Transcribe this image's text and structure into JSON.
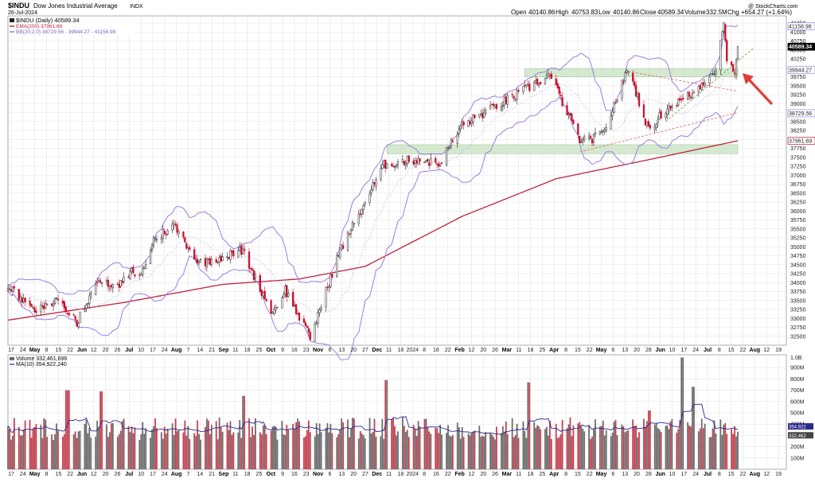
{
  "header": {
    "symbol": "$INDU",
    "name": "Dow Jones Industrial Average",
    "exchange": "INDX",
    "date": "26-Jul-2024",
    "credit": "@ StockCharts.com",
    "ohlc": {
      "open_label": "Open",
      "open": "40140.86",
      "high_label": "High",
      "high": "40753.83",
      "low_label": "Low",
      "low": "40140.86",
      "close_label": "Close",
      "close": "40589.34",
      "volume_label": "Volume",
      "volume": "332.5M",
      "chg_label": "Chg",
      "chg": "+654.27 (+1.64%)"
    }
  },
  "legend": {
    "price": "$INDU (Daily) 40589.34",
    "ema": "EMA(200) 37961.69",
    "bb": "BB(20,2.0) 38729.56 - 39944.27 - 41158.98",
    "volume": "Volume 332,461,696",
    "ma": "MA(10) 354,922,240"
  },
  "colors": {
    "up": "#222222",
    "down": "#c8102e",
    "vol_up": "#6b6b6b",
    "vol_down": "#c4404f",
    "ema": "#c0203a",
    "bb": "#9b7fe0",
    "bb_mid": "#b9a7ee",
    "zone": "#cde6c8",
    "ma": "#2a2a8a",
    "arrow": "#e03c3c"
  },
  "chart_data": [
    {
      "type": "candlestick",
      "title": "$INDU (Daily)",
      "y_ticks": [
        32500,
        32750,
        33000,
        33250,
        33500,
        33750,
        34000,
        34250,
        34500,
        34750,
        35000,
        35250,
        35500,
        35750,
        36000,
        36250,
        36500,
        36750,
        37000,
        37250,
        37500,
        37750,
        38000,
        38250,
        38500,
        38750,
        39000,
        39250,
        39500,
        39750,
        40000,
        40250,
        40500,
        40750,
        41000,
        41250
      ],
      "ylim": [
        32250,
        41450
      ],
      "x_labels": [
        "17",
        "24",
        "May",
        "8",
        "15",
        "22",
        "Jun",
        "12",
        "20",
        "26",
        "Jul",
        "10",
        "17",
        "24",
        "Aug",
        "7",
        "14",
        "21",
        "Sep",
        "11",
        "18",
        "25",
        "Oct",
        "9",
        "16",
        "23",
        "Nov",
        "6",
        "13",
        "20",
        "27",
        "Dec",
        "11",
        "18",
        "2024",
        "8",
        "16",
        "22",
        "Feb",
        "12",
        "20",
        "26",
        "Mar",
        "11",
        "18",
        "25",
        "Apr",
        "8",
        "15",
        "22",
        "May",
        "6",
        "13",
        "20",
        "28",
        "Jun",
        "10",
        "17",
        "24",
        "Jul",
        "8",
        "15",
        "22",
        "Aug",
        "12",
        "19"
      ],
      "x_range": [
        "2023-04-17",
        "2024-08-26"
      ],
      "price_labels": [
        {
          "value": 41158.98,
          "text": "41158.98"
        },
        {
          "value": 40589.34,
          "text": "40589.34"
        },
        {
          "value": 39944.27,
          "text": "39944.27"
        },
        {
          "value": 38729.56,
          "text": "38729.56"
        },
        {
          "value": 37961.69,
          "text": "37961.69"
        }
      ],
      "anchors": [
        {
          "date": "2023-04-17",
          "value": 33950
        },
        {
          "date": "2023-05-04",
          "value": 33150
        },
        {
          "date": "2023-05-18",
          "value": 33550
        },
        {
          "date": "2023-05-31",
          "value": 32900
        },
        {
          "date": "2023-06-14",
          "value": 34000
        },
        {
          "date": "2023-06-27",
          "value": 33900
        },
        {
          "date": "2023-07-05",
          "value": 34300
        },
        {
          "date": "2023-07-11",
          "value": 34200
        },
        {
          "date": "2023-07-19",
          "value": 35200
        },
        {
          "date": "2023-08-01",
          "value": 35600
        },
        {
          "date": "2023-08-17",
          "value": 34550
        },
        {
          "date": "2023-08-31",
          "value": 34700
        },
        {
          "date": "2023-09-14",
          "value": 34900
        },
        {
          "date": "2023-09-22",
          "value": 34100
        },
        {
          "date": "2023-10-03",
          "value": 33150
        },
        {
          "date": "2023-10-11",
          "value": 33800
        },
        {
          "date": "2023-10-27",
          "value": 32450
        },
        {
          "date": "2023-11-14",
          "value": 34800
        },
        {
          "date": "2023-12-01",
          "value": 36250
        },
        {
          "date": "2023-12-13",
          "value": 37300
        },
        {
          "date": "2024-01-05",
          "value": 37450
        },
        {
          "date": "2024-01-17",
          "value": 37300
        },
        {
          "date": "2024-02-01",
          "value": 38400
        },
        {
          "date": "2024-03-01",
          "value": 39100
        },
        {
          "date": "2024-03-28",
          "value": 39800
        },
        {
          "date": "2024-04-17",
          "value": 37900
        },
        {
          "date": "2024-05-01",
          "value": 38150
        },
        {
          "date": "2024-05-17",
          "value": 40000
        },
        {
          "date": "2024-05-30",
          "value": 38250
        },
        {
          "date": "2024-06-10",
          "value": 38850
        },
        {
          "date": "2024-06-28",
          "value": 39300
        },
        {
          "date": "2024-07-12",
          "value": 40000
        },
        {
          "date": "2024-07-17",
          "value": 41200
        },
        {
          "date": "2024-07-19",
          "value": 40280
        },
        {
          "date": "2024-07-24",
          "value": 39900
        },
        {
          "date": "2024-07-26",
          "value": 40589.34
        }
      ],
      "ema200": [
        {
          "date": "2023-04-17",
          "value": 32950
        },
        {
          "date": "2023-07-01",
          "value": 33450
        },
        {
          "date": "2023-09-01",
          "value": 33950
        },
        {
          "date": "2023-10-20",
          "value": 34100
        },
        {
          "date": "2023-12-01",
          "value": 34450
        },
        {
          "date": "2024-02-01",
          "value": 35850
        },
        {
          "date": "2024-04-01",
          "value": 36900
        },
        {
          "date": "2024-06-01",
          "value": 37450
        },
        {
          "date": "2024-07-26",
          "value": 37961.69
        }
      ],
      "support_zones": [
        {
          "from": "2023-12-15",
          "to": "2024-07-26",
          "low": 37600,
          "high": 37850
        },
        {
          "from": "2024-03-12",
          "to": "2024-07-26",
          "low": 39750,
          "high": 39970
        }
      ],
      "trendlines": [
        {
          "from_date": "2024-04-16",
          "from_value": 37650,
          "to_date": "2024-07-26",
          "to_value": 38750,
          "color": "#e06060"
        },
        {
          "from_date": "2024-05-17",
          "from_value": 39900,
          "to_date": "2024-07-26",
          "to_value": 39350,
          "color": "#e06060"
        },
        {
          "from_date": "2024-06-10",
          "from_value": 38500,
          "to_date": "2024-08-05",
          "to_value": 40550,
          "color": "#7a9a40"
        }
      ]
    },
    {
      "type": "bar",
      "title": "Volume",
      "y_ticks": [
        100,
        200,
        300,
        400,
        500,
        600,
        700,
        800,
        900
      ],
      "y_tick_labels": [
        "100M",
        "200M",
        "300M",
        "400M",
        "500M",
        "600M",
        "700M",
        "800M",
        "900M"
      ],
      "top_label": "1.0B",
      "ylim": [
        0,
        1000
      ],
      "unit": "M",
      "last_value": 332.5,
      "ma10_last": 354.9,
      "last_labels": [
        "354,922",
        "332,462"
      ],
      "spikes": [
        {
          "date": "2023-05-25",
          "value": 700
        },
        {
          "date": "2023-06-16",
          "value": 690
        },
        {
          "date": "2023-09-15",
          "value": 650
        },
        {
          "date": "2023-12-15",
          "value": 790
        },
        {
          "date": "2024-03-15",
          "value": 770
        },
        {
          "date": "2024-06-21",
          "value": 990
        },
        {
          "date": "2024-06-28",
          "value": 730
        },
        {
          "date": "2024-05-31",
          "value": 520
        }
      ]
    }
  ]
}
